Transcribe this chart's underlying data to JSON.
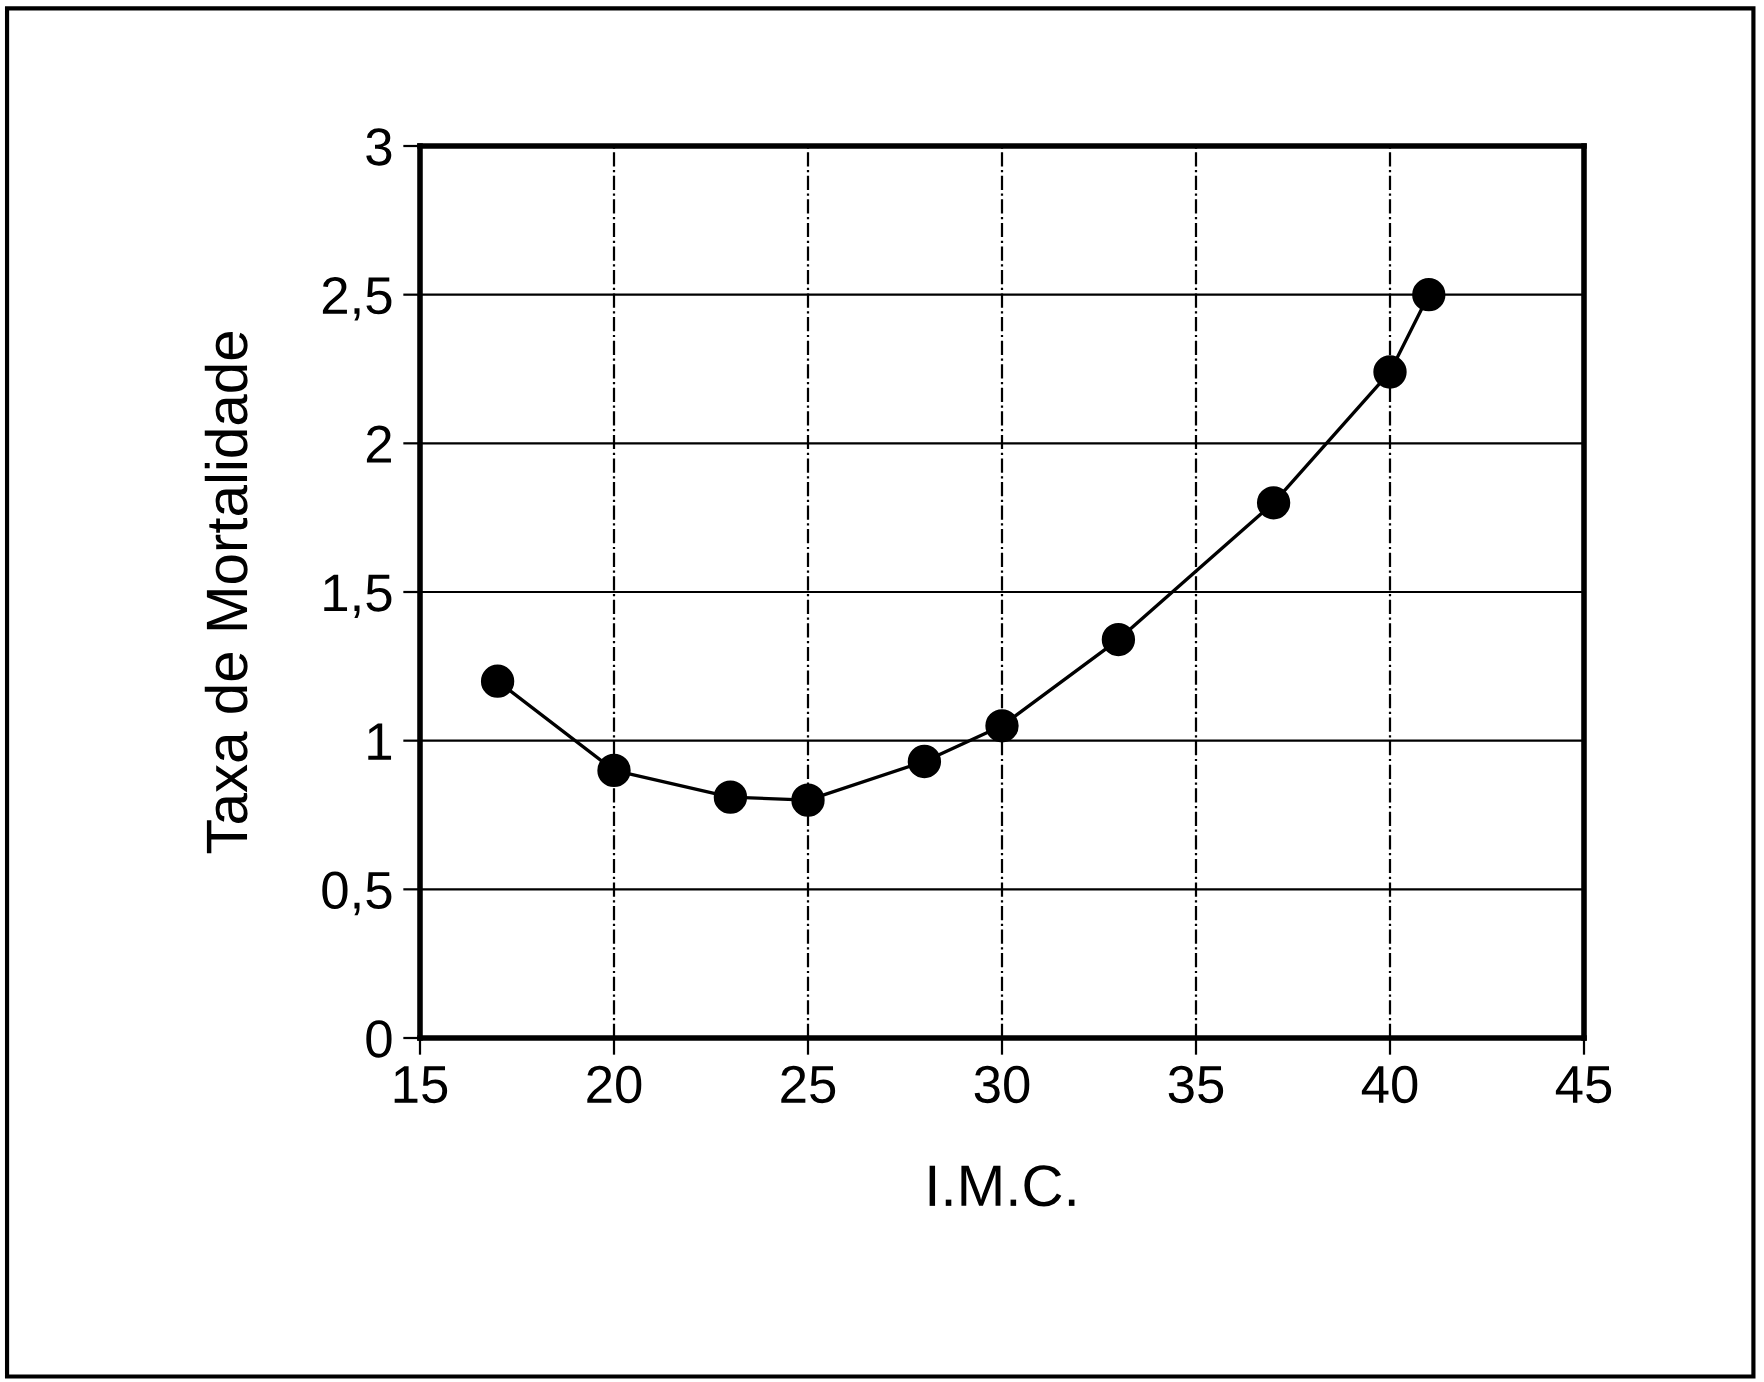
{
  "chart_data": {
    "type": "line",
    "xlabel": "I.M.C.",
    "ylabel": "Taxa de Mortalidade",
    "x": [
      17,
      20,
      23,
      25,
      28,
      30,
      33,
      37,
      40,
      41
    ],
    "series": [
      {
        "color": "#000000",
        "values": [
          1.2,
          0.9,
          0.81,
          0.8,
          0.93,
          1.05,
          1.34,
          1.8,
          2.24,
          2.5
        ]
      }
    ],
    "xlim": [
      15,
      45
    ],
    "xticks": [
      15,
      20,
      25,
      30,
      35,
      40,
      45
    ],
    "ylim": [
      0,
      3
    ],
    "yticks": [
      0,
      {
        "value": 0.5,
        "label": "0,5"
      },
      1,
      {
        "value": 1.5,
        "label": "1,5"
      },
      2,
      {
        "value": 2.5,
        "label": "2,5"
      },
      3
    ],
    "grid": true,
    "marker": "circle",
    "line_style": "solid"
  }
}
